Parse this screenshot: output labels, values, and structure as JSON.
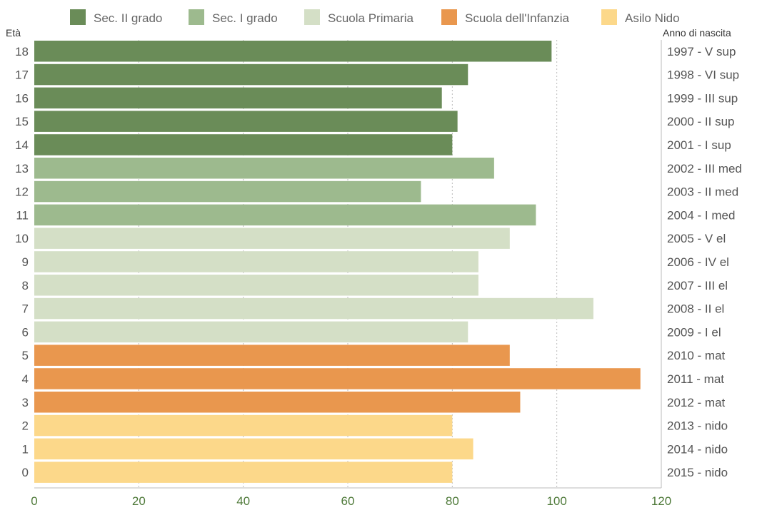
{
  "chart_data": {
    "type": "bar",
    "orientation": "horizontal",
    "title": "",
    "left_axis_title": "Età",
    "right_axis_title": "Anno di nascita",
    "xlim": [
      0,
      120
    ],
    "x_ticks": [
      0,
      20,
      40,
      60,
      80,
      100,
      120
    ],
    "grid": "vertical-dotted",
    "legend_position": "top",
    "legend": [
      {
        "name": "Sec. II grado",
        "color": "#6a8c58"
      },
      {
        "name": "Sec. I grado",
        "color": "#9dba8e"
      },
      {
        "name": "Scuola Primaria",
        "color": "#d4dfc6"
      },
      {
        "name": "Scuola dell'Infanzia",
        "color": "#e9974e"
      },
      {
        "name": "Asilo Nido",
        "color": "#fcd88a"
      }
    ],
    "bars": [
      {
        "age": "18",
        "year": "1997 - V sup",
        "value": 99,
        "group": 0
      },
      {
        "age": "17",
        "year": "1998 - VI sup",
        "value": 83,
        "group": 0
      },
      {
        "age": "16",
        "year": "1999 - III sup",
        "value": 78,
        "group": 0
      },
      {
        "age": "15",
        "year": "2000 - II sup",
        "value": 81,
        "group": 0
      },
      {
        "age": "14",
        "year": "2001 - I sup",
        "value": 80,
        "group": 0
      },
      {
        "age": "13",
        "year": "2002 - III med",
        "value": 88,
        "group": 1
      },
      {
        "age": "12",
        "year": "2003 - II med",
        "value": 74,
        "group": 1
      },
      {
        "age": "11",
        "year": "2004 - I med",
        "value": 96,
        "group": 1
      },
      {
        "age": "10",
        "year": "2005 - V el",
        "value": 91,
        "group": 2
      },
      {
        "age": "9",
        "year": "2006 - IV el",
        "value": 85,
        "group": 2
      },
      {
        "age": "8",
        "year": "2007 - III el",
        "value": 85,
        "group": 2
      },
      {
        "age": "7",
        "year": "2008 - II el",
        "value": 107,
        "group": 2
      },
      {
        "age": "6",
        "year": "2009 - I el",
        "value": 83,
        "group": 2
      },
      {
        "age": "5",
        "year": "2010 - mat",
        "value": 91,
        "group": 3
      },
      {
        "age": "4",
        "year": "2011 - mat",
        "value": 116,
        "group": 3
      },
      {
        "age": "3",
        "year": "2012 - mat",
        "value": 93,
        "group": 3
      },
      {
        "age": "2",
        "year": "2013 - nido",
        "value": 80,
        "group": 4
      },
      {
        "age": "1",
        "year": "2014 - nido",
        "value": 84,
        "group": 4
      },
      {
        "age": "0",
        "year": "2015 - nido",
        "value": 80,
        "group": 4
      }
    ]
  }
}
